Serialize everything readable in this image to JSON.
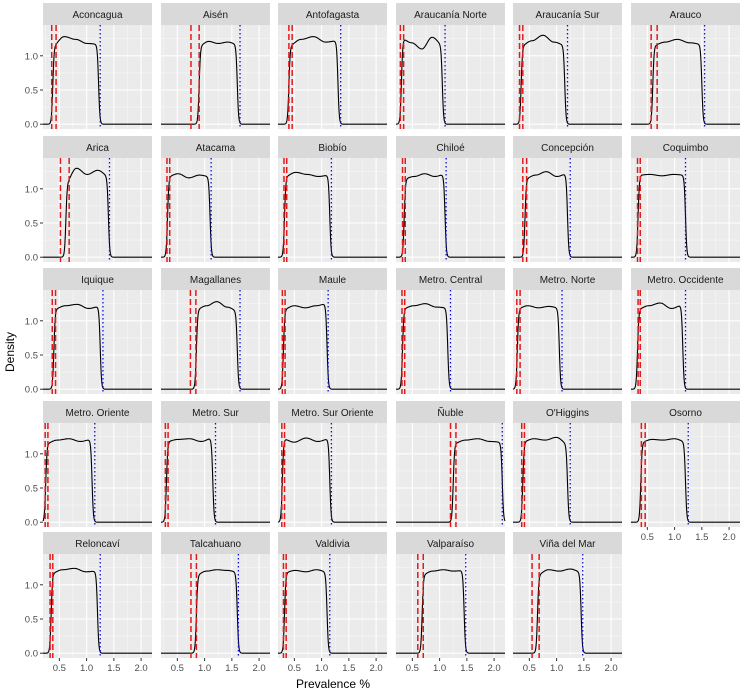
{
  "chart_data": {
    "type": "line",
    "xlabel": "Prevalence %",
    "ylabel": "Density",
    "xlim": [
      0.2,
      2.2
    ],
    "ylim": [
      -0.07,
      1.45
    ],
    "x_ticks": [
      0.5,
      1.0,
      1.5,
      2.0
    ],
    "x_tick_labels": [
      "0.5",
      "1.0",
      "1.5",
      "2.0"
    ],
    "y_ticks": [
      0.0,
      0.5,
      1.0
    ],
    "y_tick_labels": [
      "0.0",
      "0.5",
      "1.0"
    ],
    "grid": true,
    "series_styles": {
      "density": "black solid line",
      "red_lines": "red dashed vertical lines",
      "blue_line": "blue dotted vertical line"
    },
    "colors": {
      "density": "#000000",
      "red": "#e31a1c",
      "blue": "#1010cc",
      "panel_bg": "#ebebeb",
      "strip_bg": "#d9d9d9",
      "grid": "#ffffff"
    },
    "panels": [
      {
        "title": "Aconcagua",
        "lo": 0.38,
        "hi": 1.22,
        "red": [
          0.36,
          0.44
        ],
        "blue": 1.25,
        "wiggle": [
          1.15,
          1.28,
          1.24,
          1.18,
          1.17
        ]
      },
      {
        "title": "Aisén",
        "lo": 0.9,
        "hi": 1.6,
        "red": [
          0.75,
          0.9
        ],
        "blue": 1.65,
        "wiggle": [
          1.15,
          1.21,
          1.18,
          1.2,
          1.17
        ]
      },
      {
        "title": "Antofagasta",
        "lo": 0.4,
        "hi": 1.3,
        "red": [
          0.4,
          0.46
        ],
        "blue": 1.35,
        "wiggle": [
          1.15,
          1.24,
          1.28,
          1.2,
          1.22
        ]
      },
      {
        "title": "Araucanía Norte",
        "lo": 0.3,
        "hi": 1.05,
        "red": [
          0.28,
          0.34
        ],
        "blue": 1.1,
        "wiggle": [
          1.25,
          1.19,
          1.1,
          1.27,
          1.17
        ]
      },
      {
        "title": "Araucanía Sur",
        "lo": 0.35,
        "hi": 1.15,
        "red": [
          0.32,
          0.38
        ],
        "blue": 1.2,
        "wiggle": [
          1.15,
          1.22,
          1.3,
          1.2,
          1.16
        ]
      },
      {
        "title": "Arauco",
        "lo": 0.6,
        "hi": 1.5,
        "red": [
          0.57,
          0.68
        ],
        "blue": 1.55,
        "wiggle": [
          1.15,
          1.2,
          1.24,
          1.19,
          1.17
        ]
      },
      {
        "title": "Arica",
        "lo": 0.62,
        "hi": 1.4,
        "red": [
          0.52,
          0.68
        ],
        "blue": 1.42,
        "wiggle": [
          1.1,
          1.3,
          1.21,
          1.27,
          1.19
        ]
      },
      {
        "title": "Atacama",
        "lo": 0.32,
        "hi": 1.1,
        "red": [
          0.31,
          0.36
        ],
        "blue": 1.12,
        "wiggle": [
          1.18,
          1.22,
          1.16,
          1.2,
          1.18
        ]
      },
      {
        "title": "Biobío",
        "lo": 0.32,
        "hi": 1.15,
        "red": [
          0.31,
          0.36
        ],
        "blue": 1.18,
        "wiggle": [
          1.18,
          1.24,
          1.21,
          1.18,
          1.2
        ]
      },
      {
        "title": "Chiloé",
        "lo": 0.35,
        "hi": 1.1,
        "red": [
          0.32,
          0.37
        ],
        "blue": 1.12,
        "wiggle": [
          1.15,
          1.18,
          1.22,
          1.18,
          1.21
        ]
      },
      {
        "title": "Concepción",
        "lo": 0.42,
        "hi": 1.2,
        "red": [
          0.38,
          0.45
        ],
        "blue": 1.25,
        "wiggle": [
          1.15,
          1.2,
          1.25,
          1.18,
          1.22
        ]
      },
      {
        "title": "Coquimbo",
        "lo": 0.33,
        "hi": 1.2,
        "red": [
          0.32,
          0.37
        ],
        "blue": 1.2,
        "wiggle": [
          1.2,
          1.21,
          1.19,
          1.21,
          1.2
        ]
      },
      {
        "title": "Iquique",
        "lo": 0.4,
        "hi": 1.25,
        "red": [
          0.37,
          0.43
        ],
        "blue": 1.3,
        "wiggle": [
          1.17,
          1.22,
          1.24,
          1.18,
          1.21
        ]
      },
      {
        "title": "Magallanes",
        "lo": 0.85,
        "hi": 1.6,
        "red": [
          0.74,
          0.84
        ],
        "blue": 1.65,
        "wiggle": [
          1.17,
          1.22,
          1.28,
          1.2,
          1.15
        ]
      },
      {
        "title": "Maule",
        "lo": 0.3,
        "hi": 1.1,
        "red": [
          0.28,
          0.33
        ],
        "blue": 1.12,
        "wiggle": [
          1.17,
          1.22,
          1.19,
          1.22,
          1.25
        ]
      },
      {
        "title": "Metro. Central",
        "lo": 0.32,
        "hi": 1.15,
        "red": [
          0.31,
          0.36
        ],
        "blue": 1.2,
        "wiggle": [
          1.18,
          1.22,
          1.25,
          1.2,
          1.19
        ]
      },
      {
        "title": "Metro. Norte",
        "lo": 0.28,
        "hi": 1.05,
        "red": [
          0.27,
          0.33
        ],
        "blue": 1.1,
        "wiggle": [
          1.18,
          1.22,
          1.19,
          1.21,
          1.19
        ]
      },
      {
        "title": "Metro. Occidente",
        "lo": 0.32,
        "hi": 1.15,
        "red": [
          0.33,
          0.37
        ],
        "blue": 1.2,
        "wiggle": [
          1.17,
          1.22,
          1.26,
          1.18,
          1.23
        ]
      },
      {
        "title": "Metro. Oriente",
        "lo": 0.25,
        "hi": 1.1,
        "red": [
          0.24,
          0.29
        ],
        "blue": 1.15,
        "wiggle": [
          1.15,
          1.2,
          1.22,
          1.18,
          1.21
        ]
      },
      {
        "title": "Metro. Sur",
        "lo": 0.3,
        "hi": 1.15,
        "red": [
          0.28,
          0.33
        ],
        "blue": 1.2,
        "wiggle": [
          1.18,
          1.21,
          1.22,
          1.18,
          1.23
        ]
      },
      {
        "title": "Metro. Sur Oriente",
        "lo": 0.28,
        "hi": 1.15,
        "red": [
          0.27,
          0.32
        ],
        "blue": 1.18,
        "wiggle": [
          1.22,
          1.17,
          1.23,
          1.18,
          1.22
        ]
      },
      {
        "title": "Ñuble",
        "lo": 1.25,
        "hi": 2.15,
        "red": [
          1.2,
          1.3
        ],
        "blue": 2.15,
        "wiggle": [
          1.15,
          1.2,
          1.22,
          1.18,
          1.17
        ]
      },
      {
        "title": "O'Higgins",
        "lo": 0.38,
        "hi": 1.2,
        "red": [
          0.36,
          0.41
        ],
        "blue": 1.25,
        "wiggle": [
          1.18,
          1.22,
          1.2,
          1.24,
          1.15
        ]
      },
      {
        "title": "Osorno",
        "lo": 0.38,
        "hi": 1.2,
        "red": [
          0.39,
          0.46
        ],
        "blue": 1.25,
        "wiggle": [
          1.17,
          1.21,
          1.2,
          1.22,
          1.18
        ]
      },
      {
        "title": "Reloncaví",
        "lo": 0.35,
        "hi": 1.2,
        "red": [
          0.33,
          0.38
        ],
        "blue": 1.25,
        "wiggle": [
          1.17,
          1.22,
          1.24,
          1.19,
          1.2
        ]
      },
      {
        "title": "Talcahuano",
        "lo": 0.85,
        "hi": 1.6,
        "red": [
          0.75,
          0.85
        ],
        "blue": 1.62,
        "wiggle": [
          1.15,
          1.2,
          1.22,
          1.21,
          1.19
        ]
      },
      {
        "title": "Valdivia",
        "lo": 0.32,
        "hi": 1.1,
        "red": [
          0.3,
          0.35
        ],
        "blue": 1.15,
        "wiggle": [
          1.18,
          1.21,
          1.19,
          1.22,
          1.19
        ]
      },
      {
        "title": "Valparaíso",
        "lo": 0.68,
        "hi": 1.45,
        "red": [
          0.6,
          0.7
        ],
        "blue": 1.48,
        "wiggle": [
          1.15,
          1.2,
          1.22,
          1.2,
          1.21
        ]
      },
      {
        "title": "Viña del Mar",
        "lo": 0.65,
        "hi": 1.45,
        "red": [
          0.55,
          0.68
        ],
        "blue": 1.48,
        "wiggle": [
          1.15,
          1.22,
          1.2,
          1.23,
          1.19
        ]
      }
    ]
  }
}
